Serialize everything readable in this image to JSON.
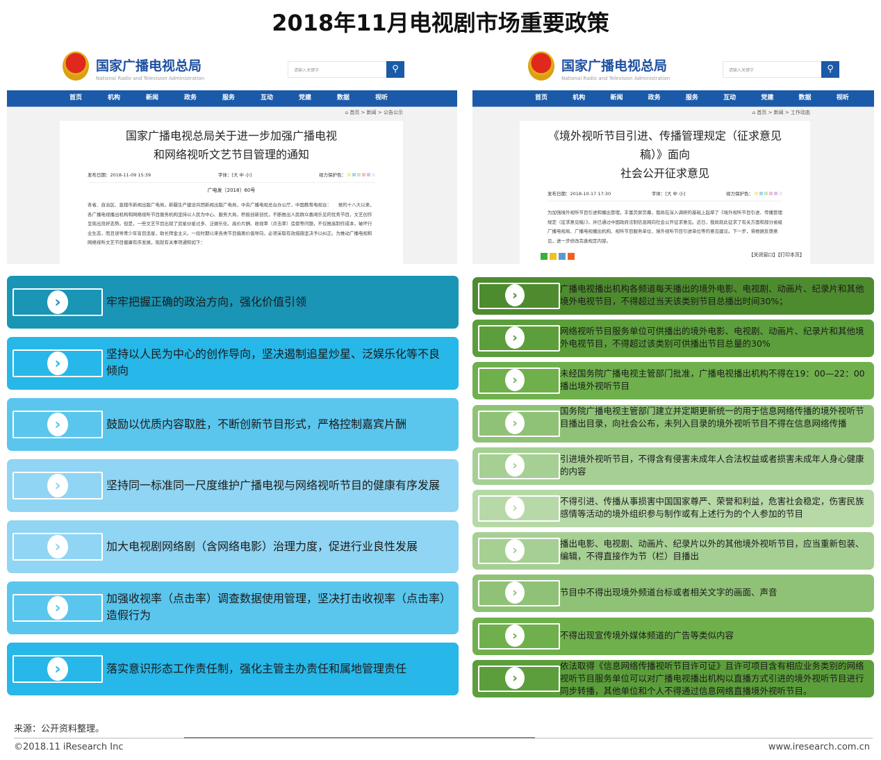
{
  "title": "2018年11月电视剧市场重要政策",
  "site": {
    "name": "国家广播电视总局",
    "en": "National Radio and Television Administration",
    "search_placeholder": "请输入关键字",
    "nav": [
      "首页",
      "机构",
      "新闻",
      "政务",
      "服务",
      "互动",
      "党建",
      "数据",
      "视听"
    ]
  },
  "left_doc": {
    "breadcrumb": "首页 > 新闻 > 公告公示",
    "heading_1": "国家广播电视总局关于进一步加强广播电视",
    "heading_2": "和网络视听文艺节目管理的通知",
    "date": "发布日期：2018-11-09 15:39",
    "font": "字体：[大 中 小]",
    "eye": "视力保护色：",
    "doc_no": "广电发〔2018〕60号",
    "body": "各省、自治区、直辖市新闻出版广电局，新疆生产建设兵团新闻出版广电局，中央广播电视总台办公厅，中国教育电视台：　　党的十八大以来，各广播电视播出机构和网络视听节目服务机构坚持以人民为中心、服务大局，积极创新创优，不断推出人民群众喜闻乐见的优秀节目，文艺创作呈现出良好态势。但是，一些文艺节目出现了追星炒星过多、泛娱乐化、高价片酬、收视率（点击率）造假等问题，不仅推高制作成本，破坏行业生态，而且误导青少年盲目追星，助长拜金主义。一段时期以来各类节目偏离价值导向，必须采取有效措施坚决予以纠正。为推动广播电视和网络视听文艺节目健康有序发展，现就有关事项通知如下："
  },
  "right_doc": {
    "breadcrumb": "首页 > 新闻 > 工作动态",
    "heading_1": "《境外视听节目引进、传播管理规定（征求意见稿）》面向",
    "heading_2": "社会公开征求意见",
    "date": "发布日期：2018-10-17 17:30",
    "font": "字体：[大 中 小]",
    "eye": "视力保护色：",
    "body": "为加强境外视听节目引进和播出管理，丰富荧屏荧幕，我局在深入调研的基础上起草了《境外视听节目引进、传播管理规定（征求意见稿）》，并已通过中国政府法制信息网向社会公开征求意见。近日，我局就此征求了有关方面和部分省级广播电视局、广播电视播出机构、视听节目服务单位、境外视听节目引进单位等的意见建议。下一步，将根据反馈意见，进一步修改完善规定内容。",
    "close": "【关闭窗口】",
    "print": "【打印本页】"
  },
  "left_items": [
    {
      "text": "牢牢把握正确的政治方向，强化价值引领",
      "color": "#1a95b5",
      "chev": "#1a95b5"
    },
    {
      "text": "坚持以人民为中心的创作导向，坚决遏制追星炒星、泛娱乐化等不良倾向",
      "color": "#27b7e8",
      "chev": "#27b7e8"
    },
    {
      "text": "鼓励以优质内容取胜，不断创新节目形式，严格控制嘉宾片酬",
      "color": "#5ac6ee",
      "chev": "#5ac6ee"
    },
    {
      "text": "坚持同一标准同一尺度维护广播电视与网络视听节目的健康有序发展",
      "color": "#90d5f3",
      "chev": "#90d5f3"
    },
    {
      "text": "加大电视剧网络剧（含网络电影）治理力度，促进行业良性发展",
      "color": "#90d5f3",
      "chev": "#90d5f3"
    },
    {
      "text": "加强收视率（点击率）调查数据使用管理，坚决打击收视率（点击率）造假行为",
      "color": "#5ac6ee",
      "chev": "#5ac6ee"
    },
    {
      "text": "落实意识形态工作责任制，强化主管主办责任和属地管理责任",
      "color": "#27b7e8",
      "chev": "#27b7e8"
    }
  ],
  "right_items": [
    {
      "text": "广播电视播出机构各频道每天播出的境外电影、电视剧、动画片、纪录片和其他境外电视节目，不得超过当天该类别节目总播出时间30%；",
      "color": "#4e8b2f"
    },
    {
      "text": "网络视听节目服务单位可供播出的境外电影、电视剧、动画片、纪录片和其他境外电视节目，不得超过该类别可供播出节目总量的30%",
      "color": "#5c9e3b"
    },
    {
      "text": "未经国务院广播电视主管部门批准，广播电视播出机构不得在19：00—22：00播出境外视听节目",
      "color": "#6fb04d"
    },
    {
      "text": "国务院广播电视主管部门建立并定期更新统一的用于信息网络传播的境外视听节目播出目录，向社会公布，未列入目录的境外视听节目不得在信息网络传播",
      "color": "#8fc277"
    },
    {
      "text": "引进境外视听节目，不得含有侵害未成年人合法权益或者损害未成年人身心健康的内容",
      "color": "#a6cf94"
    },
    {
      "text": "不得引进、传播从事损害中国国家尊严、荣誉和利益，危害社会稳定，伤害民族感情等活动的境外组织参与制作或有上述行为的个人参加的节目",
      "color": "#b7d9a8"
    },
    {
      "text": "播出电影、电视剧、动画片、纪录片以外的其他境外视听节目，应当重新包装、编辑，不得直接作为节（栏）目播出",
      "color": "#a6cf94"
    },
    {
      "text": "节目中不得出现境外频道台标或者相关文字的画面、声音",
      "color": "#8fc277"
    },
    {
      "text": "不得出现宣传境外媒体频道的广告等类似内容",
      "color": "#6fb04d"
    },
    {
      "text": "依法取得《信息网络传播视听节目许可证》且许可项目含有相应业务类别的网络视听节目服务单位可以对广播电视播出机构以直播方式引进的境外视听节目进行同步转播，其他单位和个人不得通过信息网络直播境外视听节目。",
      "color": "#5c9e3b"
    }
  ],
  "footer": {
    "source": "来源：公开资料整理。",
    "copyright": "©2018.11 iResearch Inc",
    "url": "www.iresearch.com.cn"
  }
}
